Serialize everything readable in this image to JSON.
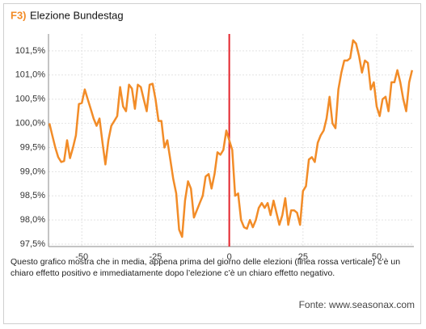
{
  "chart_data": {
    "type": "line",
    "title_prefix": "F3)",
    "title": "Elezione Bundestag",
    "note": "Questo grafico mostra che in media, appena prima del giorno delle elezioni (linea rossa verticale) c’è un chiaro effetto positivo e immediatamente dopo l’elezione c’è un chiaro effetto negativo.",
    "source": "Fonte: www.seasonax.com",
    "x": [
      -61,
      -60,
      -59,
      -58,
      -57,
      -56,
      -55,
      -54,
      -53,
      -52,
      -51,
      -50,
      -49,
      -48,
      -47,
      -46,
      -45,
      -44,
      -43,
      -42,
      -41,
      -40,
      -39,
      -38,
      -37,
      -36,
      -35,
      -34,
      -33,
      -32,
      -31,
      -30,
      -29,
      -28,
      -27,
      -26,
      -25,
      -24,
      -23,
      -22,
      -21,
      -20,
      -19,
      -18,
      -17,
      -16,
      -15,
      -14,
      -13,
      -12,
      -11,
      -10,
      -9,
      -8,
      -7,
      -6,
      -5,
      -4,
      -3,
      -2,
      -1,
      0,
      1,
      2,
      3,
      4,
      5,
      6,
      7,
      8,
      9,
      10,
      11,
      12,
      13,
      14,
      15,
      16,
      17,
      18,
      19,
      20,
      21,
      22,
      23,
      24,
      25,
      26,
      27,
      28,
      29,
      30,
      31,
      32,
      33,
      34,
      35,
      36,
      37,
      38,
      39,
      40,
      41,
      42,
      43,
      44,
      45,
      46,
      47,
      48,
      49,
      50,
      51,
      52,
      53,
      54,
      55,
      56,
      57,
      58,
      59,
      60,
      61,
      62
    ],
    "series": [
      {
        "color": "#f28c28",
        "values": [
          100.0,
          99.75,
          99.5,
          99.3,
          99.2,
          99.22,
          99.65,
          99.28,
          99.5,
          99.75,
          100.4,
          100.42,
          100.7,
          100.5,
          100.3,
          100.1,
          99.95,
          100.1,
          99.6,
          99.15,
          99.65,
          99.95,
          100.05,
          100.15,
          100.75,
          100.35,
          100.25,
          100.8,
          100.72,
          100.3,
          100.8,
          100.75,
          100.5,
          100.25,
          100.8,
          100.82,
          100.5,
          100.05,
          100.05,
          99.5,
          99.65,
          99.25,
          98.85,
          98.55,
          97.8,
          97.65,
          98.4,
          98.8,
          98.65,
          98.05,
          98.2,
          98.35,
          98.5,
          98.9,
          98.95,
          98.65,
          98.95,
          99.4,
          99.35,
          99.45,
          99.85,
          99.65,
          99.45,
          98.5,
          98.55,
          98.0,
          97.85,
          97.82,
          98.0,
          97.85,
          98.0,
          98.25,
          98.35,
          98.25,
          98.35,
          98.1,
          98.4,
          98.15,
          97.9,
          98.1,
          98.45,
          97.9,
          98.2,
          98.2,
          98.15,
          97.9,
          98.6,
          98.7,
          99.25,
          99.3,
          99.2,
          99.6,
          99.75,
          99.85,
          100.1,
          100.55,
          100.0,
          99.9,
          100.7,
          101.05,
          101.3,
          101.3,
          101.35,
          101.72,
          101.65,
          101.4,
          101.05,
          101.3,
          101.25,
          100.7,
          100.85,
          100.35,
          100.15,
          100.5,
          100.55,
          100.25,
          100.85,
          100.85,
          101.1,
          100.85,
          100.5,
          100.25,
          100.85,
          101.1
        ]
      }
    ],
    "vline": {
      "value": 0,
      "color": "#e3242b"
    },
    "xlim": [
      -61.3,
      62.6
    ],
    "xticks": [
      -50,
      -25,
      0,
      25,
      50
    ],
    "ylim": [
      97.45,
      101.85
    ],
    "yticks": [
      {
        "value": 97.5,
        "label": "97,5%"
      },
      {
        "value": 98,
        "label": "98,0%"
      },
      {
        "value": 98.5,
        "label": "98,5%"
      },
      {
        "value": 99,
        "label": "99,0%"
      },
      {
        "value": 99.5,
        "label": "99,5%"
      },
      {
        "value": 100,
        "label": "100,0%"
      },
      {
        "value": 100.5,
        "label": "100,5%"
      },
      {
        "value": 101,
        "label": "101,0%"
      },
      {
        "value": 101.5,
        "label": "101,5%"
      }
    ],
    "grid": true
  }
}
